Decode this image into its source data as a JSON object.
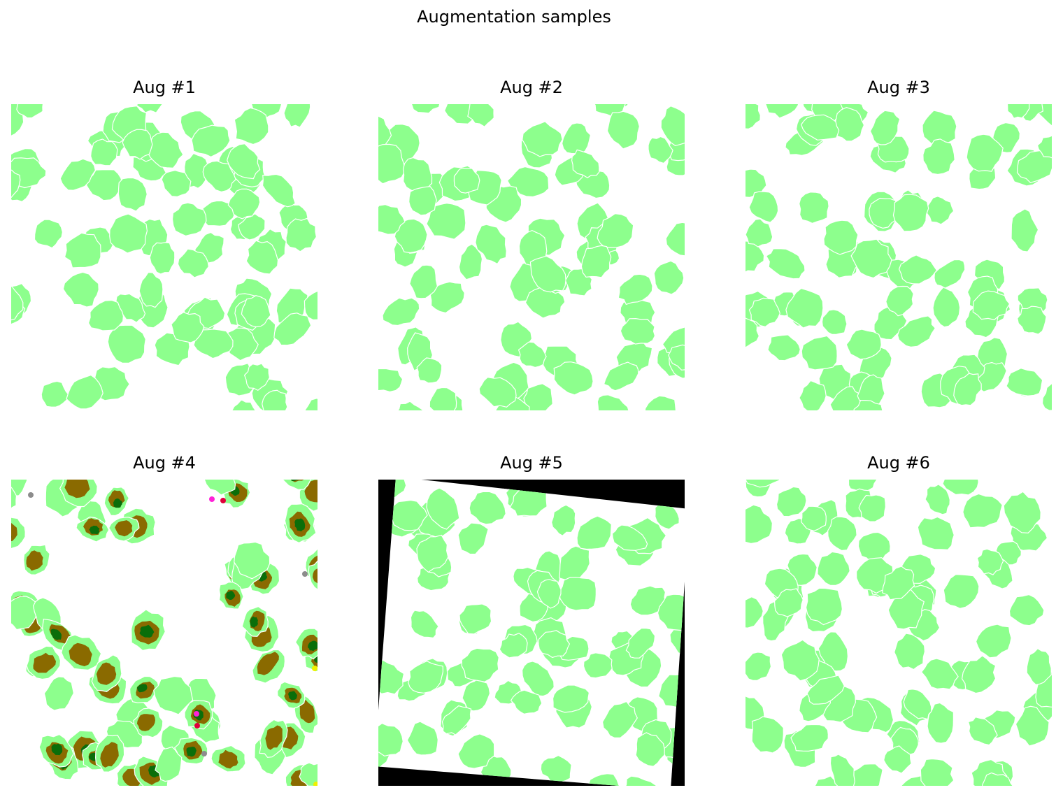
{
  "figure": {
    "suptitle": "Augmentation samples"
  },
  "colors": {
    "background": "#ffffff",
    "cell": "#8dff8d",
    "cell_outline": "#ffffff",
    "dark_green": "#0a6e0a",
    "olive": "#8a6a00",
    "rotation_fill": "#000000",
    "speck_magenta": "#ff22d8",
    "speck_red": "#e0003a",
    "speck_gray": "#8c8c8c",
    "speck_yellow": "#f0f000"
  },
  "panels": [
    {
      "title": "Aug #1",
      "variant": "plain"
    },
    {
      "title": "Aug #2",
      "variant": "plain"
    },
    {
      "title": "Aug #3",
      "variant": "plain"
    },
    {
      "title": "Aug #4",
      "variant": "color-channels"
    },
    {
      "title": "Aug #5",
      "variant": "rotated"
    },
    {
      "title": "Aug #6",
      "variant": "plain"
    }
  ]
}
